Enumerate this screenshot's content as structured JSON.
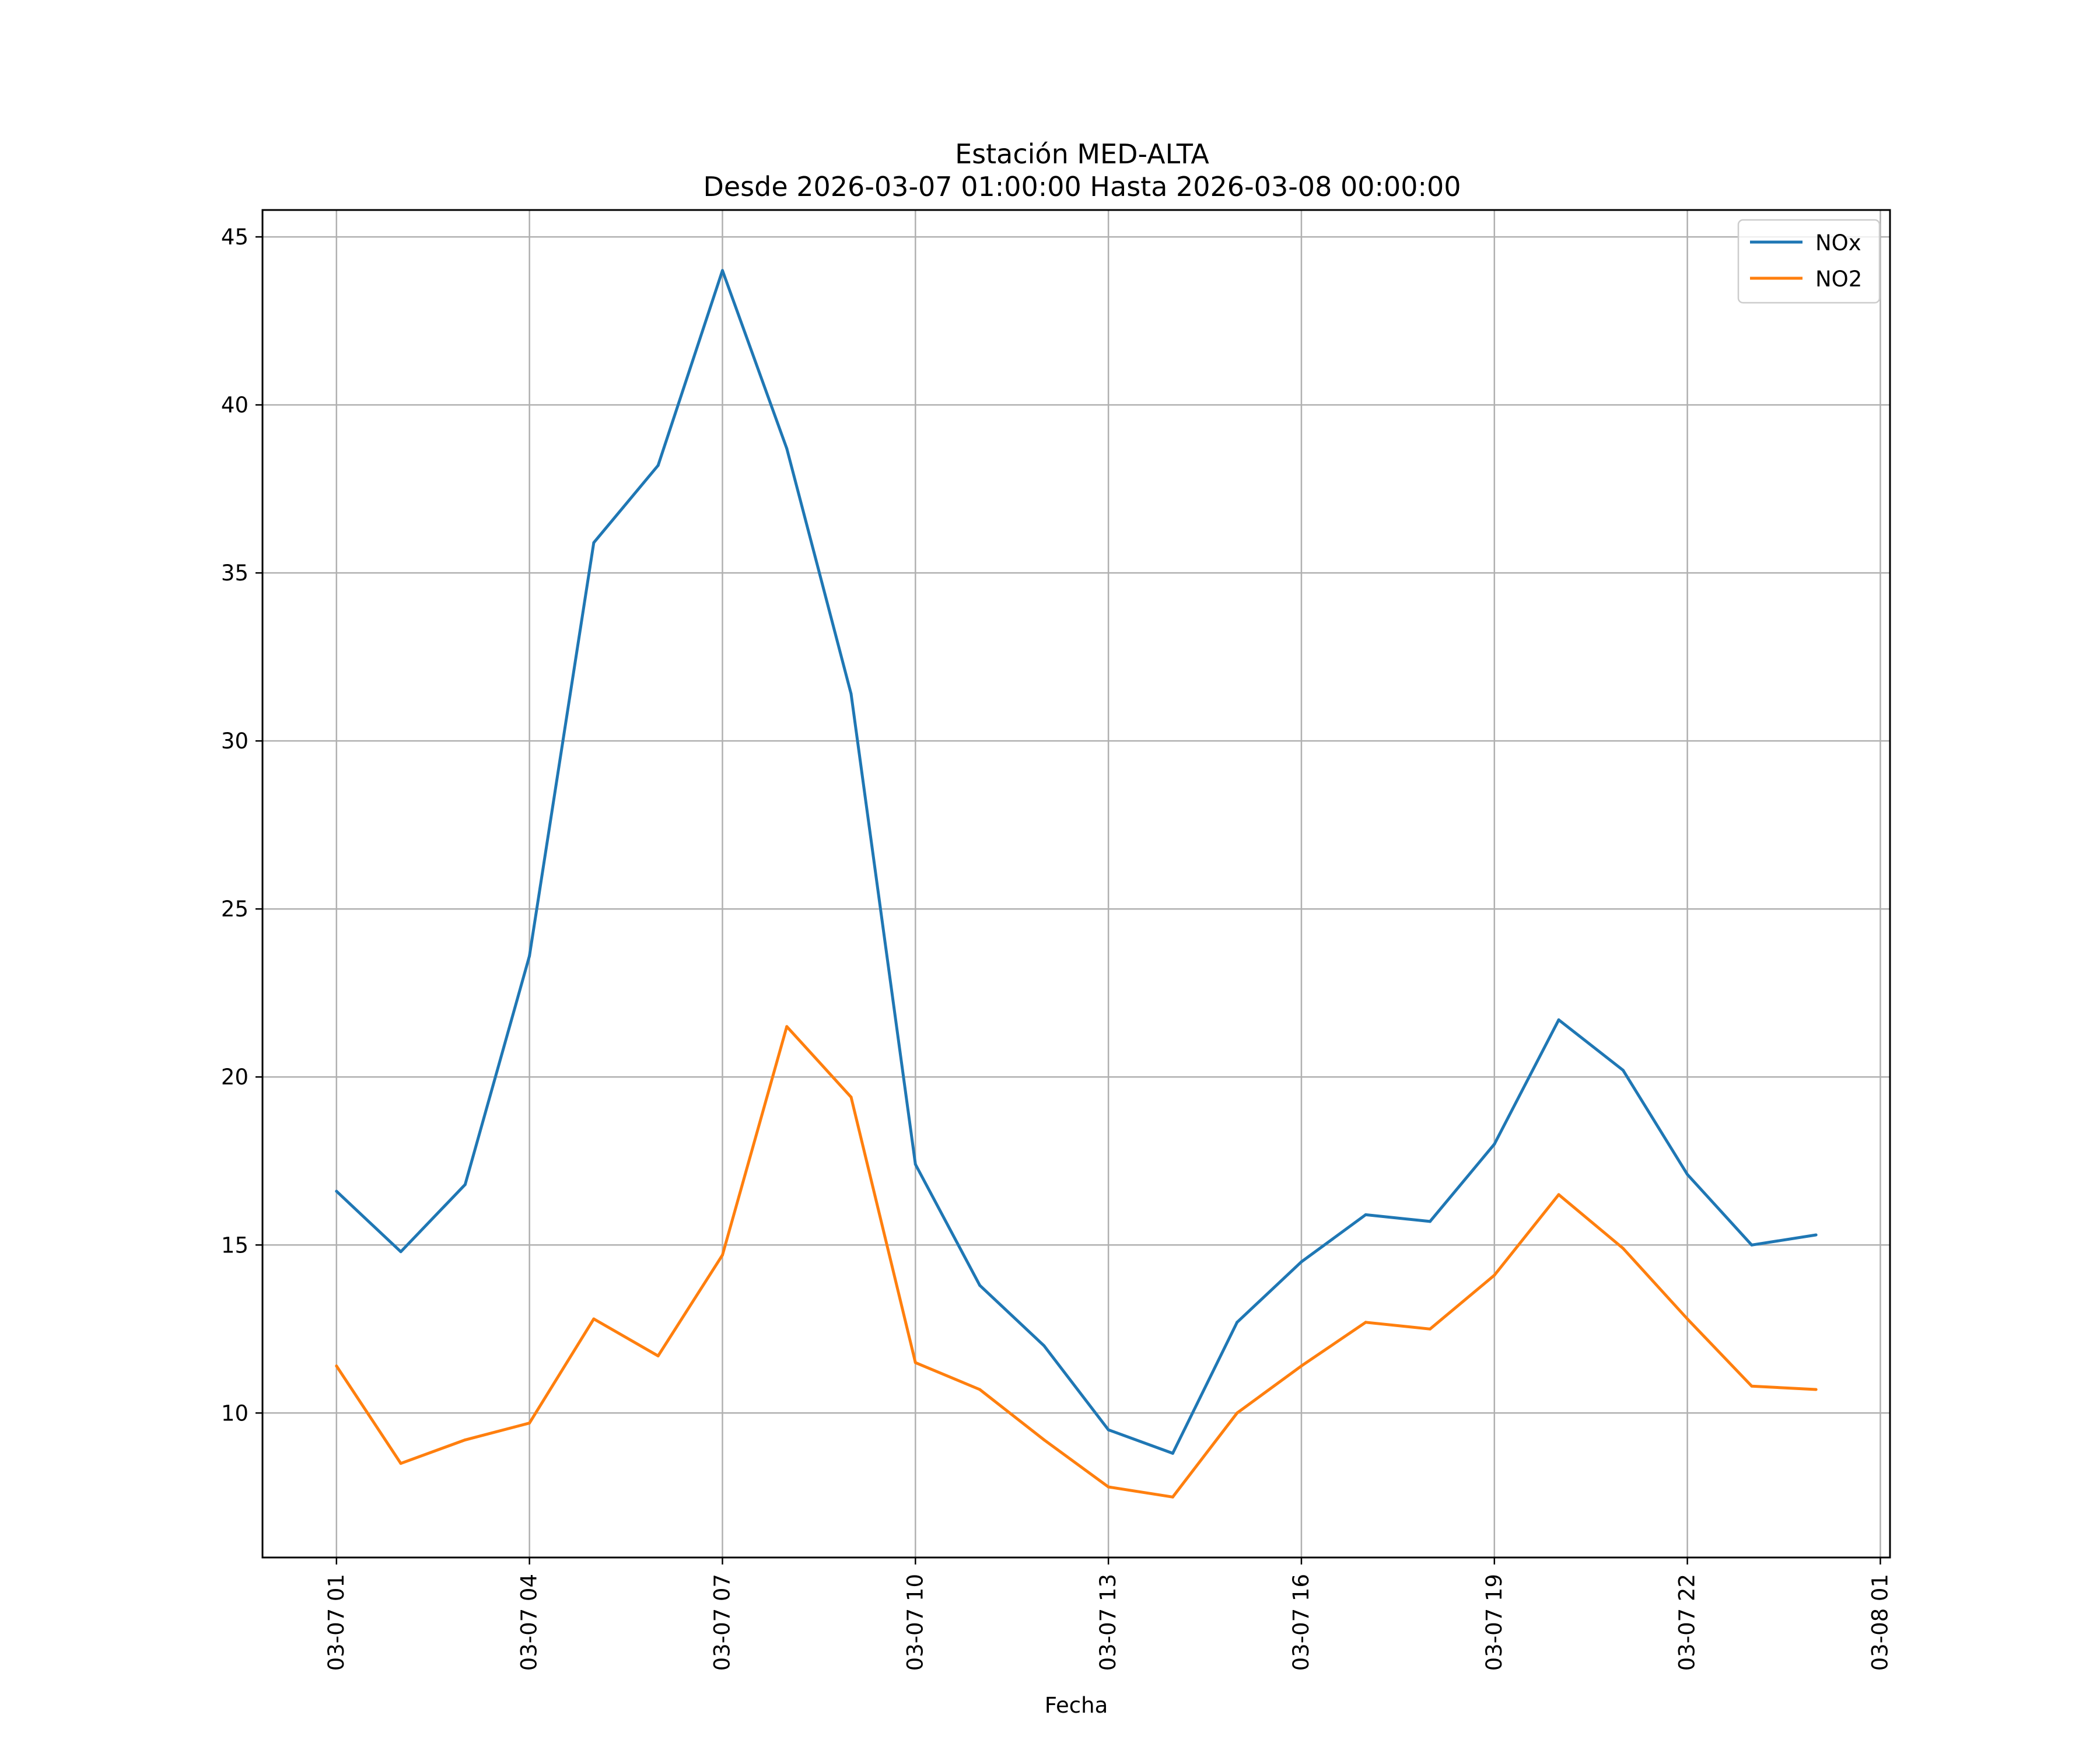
{
  "chart_data": {
    "type": "line",
    "title": "Estación MED-ALTA",
    "subtitle": "Desde 2026-03-07 01:00:00 Hasta 2026-03-08 00:00:00",
    "xlabel": "Fecha",
    "ylabel": "",
    "x_hours": [
      1,
      2,
      3,
      4,
      5,
      6,
      7,
      8,
      9,
      10,
      11,
      12,
      13,
      14,
      15,
      16,
      17,
      18,
      19,
      20,
      21,
      22,
      23,
      24
    ],
    "xlim_hours": [
      -0.15,
      25.15
    ],
    "x_ticks": [
      {
        "hour": 1,
        "label": "03-07 01"
      },
      {
        "hour": 4,
        "label": "03-07 04"
      },
      {
        "hour": 7,
        "label": "03-07 07"
      },
      {
        "hour": 10,
        "label": "03-07 10"
      },
      {
        "hour": 13,
        "label": "03-07 13"
      },
      {
        "hour": 16,
        "label": "03-07 16"
      },
      {
        "hour": 19,
        "label": "03-07 19"
      },
      {
        "hour": 22,
        "label": "03-07 22"
      },
      {
        "hour": 25,
        "label": "03-08 01"
      }
    ],
    "ylim": [
      5.7,
      45.8
    ],
    "y_ticks": [
      {
        "value": 10,
        "label": "10"
      },
      {
        "value": 15,
        "label": "15"
      },
      {
        "value": 20,
        "label": "20"
      },
      {
        "value": 25,
        "label": "25"
      },
      {
        "value": 30,
        "label": "30"
      },
      {
        "value": 35,
        "label": "35"
      },
      {
        "value": 40,
        "label": "40"
      },
      {
        "value": 45,
        "label": "45"
      }
    ],
    "grid": true,
    "legend_position": "top-right",
    "series": [
      {
        "name": "NOx",
        "color": "#1f77b4",
        "values": [
          16.6,
          14.8,
          16.8,
          23.6,
          35.9,
          38.2,
          44.0,
          38.7,
          31.4,
          17.4,
          13.8,
          12.0,
          9.5,
          8.8,
          12.7,
          14.5,
          15.9,
          15.7,
          18.0,
          21.7,
          20.2,
          17.1,
          15.0,
          15.3
        ]
      },
      {
        "name": "NO2",
        "color": "#ff7f0e",
        "values": [
          11.4,
          8.5,
          9.2,
          9.7,
          12.8,
          11.7,
          14.7,
          21.5,
          19.4,
          11.5,
          10.7,
          9.2,
          7.8,
          7.5,
          10.0,
          11.4,
          12.7,
          12.5,
          14.1,
          16.5,
          14.9,
          12.8,
          10.8,
          10.7
        ]
      }
    ]
  }
}
